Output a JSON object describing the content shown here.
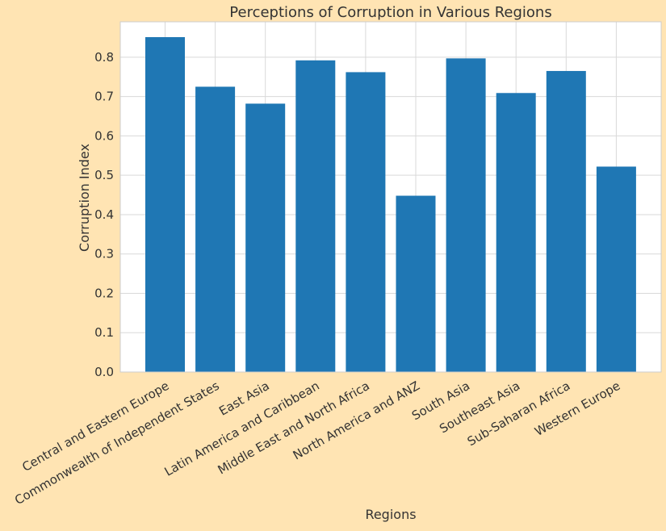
{
  "chart_data": {
    "type": "bar",
    "title": "Perceptions of Corruption in Various Regions",
    "xlabel": "Regions",
    "ylabel": "Corruption Index",
    "categories": [
      "Central and Eastern Europe",
      "Commonwealth of Independent States",
      "East Asia",
      "Latin America and Caribbean",
      "Middle East and North Africa",
      "North America and ANZ",
      "South Asia",
      "Southeast Asia",
      "Sub-Saharan Africa",
      "Western Europe"
    ],
    "values": [
      0.851,
      0.725,
      0.682,
      0.792,
      0.762,
      0.448,
      0.797,
      0.709,
      0.765,
      0.522
    ],
    "ylim": [
      0,
      0.89
    ],
    "yticks": [
      "0.0",
      "0.1",
      "0.2",
      "0.3",
      "0.4",
      "0.5",
      "0.6",
      "0.7",
      "0.8"
    ],
    "bar_color": "#1f77b4",
    "plot_background": "#ffffff",
    "figure_background": "#ffe4b3",
    "grid": true
  }
}
